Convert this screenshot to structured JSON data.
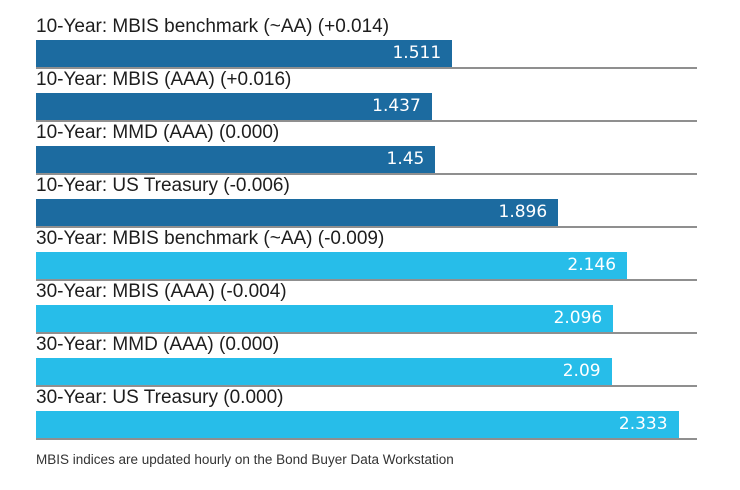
{
  "chart_data": {
    "type": "bar",
    "orientation": "horizontal",
    "title": "",
    "xlabel": "",
    "ylabel": "",
    "xlim": [
      0,
      2.4
    ],
    "grid": false,
    "legend": "none",
    "value_label_position": "inside-right",
    "categories": [
      "10-Year: MBIS benchmark (~AA) (+0.014)",
      "10-Year: MBIS (AAA) (+0.016)",
      "10-Year: MMD (AAA) (0.000)",
      "10-Year: US Treasury (-0.006)",
      "30-Year: MBIS benchmark (~AA) (-0.009)",
      "30-Year: MBIS (AAA) (-0.004)",
      "30-Year: MMD (AAA) (0.000)",
      "30-Year: US Treasury (0.000)"
    ],
    "values": [
      1.511,
      1.437,
      1.45,
      1.896,
      2.146,
      2.096,
      2.09,
      2.333
    ],
    "bars": [
      {
        "label": "10-Year: MBIS benchmark (~AA) (+0.014)",
        "value": 1.511,
        "display": "1.511",
        "series": "10-year"
      },
      {
        "label": "10-Year: MBIS (AAA) (+0.016)",
        "value": 1.437,
        "display": "1.437",
        "series": "10-year"
      },
      {
        "label": "10-Year: MMD (AAA) (0.000)",
        "value": 1.45,
        "display": "1.45",
        "series": "10-year"
      },
      {
        "label": "10-Year: US Treasury (-0.006)",
        "value": 1.896,
        "display": "1.896",
        "series": "10-year"
      },
      {
        "label": "30-Year: MBIS benchmark (~AA) (-0.009)",
        "value": 2.146,
        "display": "2.146",
        "series": "30-year"
      },
      {
        "label": "30-Year: MBIS (AAA) (-0.004)",
        "value": 2.096,
        "display": "2.096",
        "series": "30-year"
      },
      {
        "label": "30-Year: MMD (AAA) (0.000)",
        "value": 2.09,
        "display": "2.09",
        "series": "30-year"
      },
      {
        "label": "30-Year: US Treasury (0.000)",
        "value": 2.333,
        "display": "2.333",
        "series": "30-year"
      }
    ],
    "series_colors": {
      "10-year": "#1c6ba0",
      "30-year": "#27bde9"
    },
    "footnote": "MBIS indices are updated hourly on the Bond Buyer Data Workstation"
  },
  "colors": {
    "bar_10yr": "#1c6ba0",
    "bar_30yr": "#27bde9",
    "separator": "#8f8f8f",
    "label_text": "#1d1d1d",
    "value_text": "#ffffff",
    "footnote_text": "#333333",
    "background": "#ffffff"
  }
}
